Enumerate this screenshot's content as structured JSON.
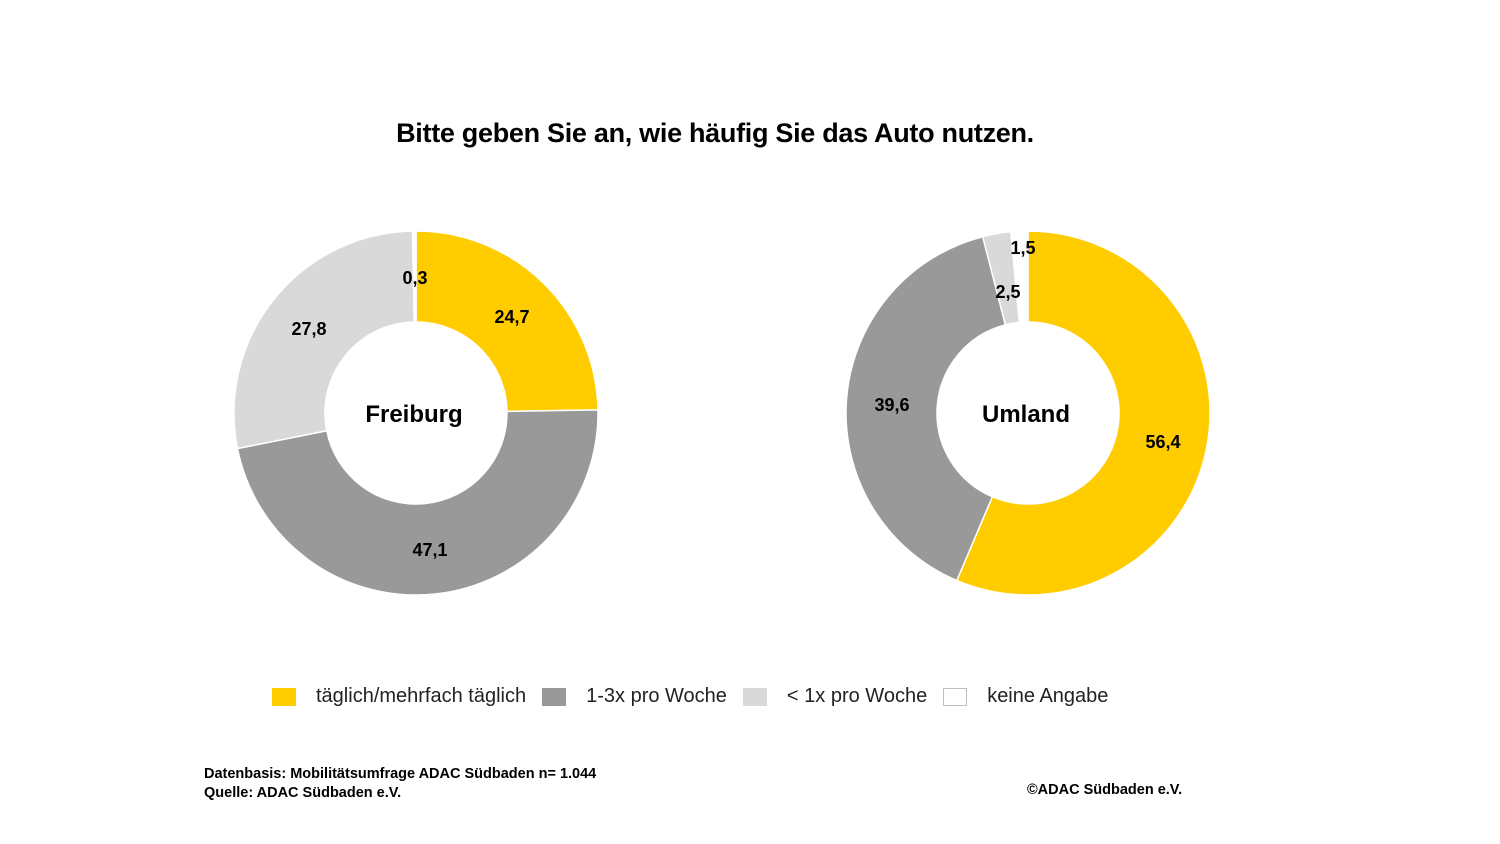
{
  "chart_data": {
    "type": "pie",
    "title": "Bitte geben Sie an, wie häufig Sie das Auto nutzen.",
    "categories": [
      "täglich/mehrfach täglich",
      "1-3x pro Woche",
      "< 1x pro Woche",
      "keine Angabe"
    ],
    "colors": [
      "#FFCC00",
      "#999999",
      "#D9D9D9",
      "#FFFFFF"
    ],
    "series": [
      {
        "name": "Freiburg",
        "values": [
          24.7,
          47.1,
          27.8,
          0.3
        ],
        "labels": [
          "24,7",
          "47,1",
          "27,8",
          "0,3"
        ]
      },
      {
        "name": "Umland",
        "values": [
          56.4,
          39.6,
          2.5,
          1.5
        ],
        "labels": [
          "56,4",
          "39,6",
          "2,5",
          "1,5"
        ]
      }
    ],
    "legend_position": "bottom"
  },
  "legend": {
    "items": [
      {
        "label": "täglich/mehrfach täglich",
        "color": "#FFCC00"
      },
      {
        "label": "1-3x pro Woche",
        "color": "#999999"
      },
      {
        "label": "< 1x pro Woche",
        "color": "#D9D9D9"
      },
      {
        "label": "keine Angabe",
        "color": "#FFFFFF"
      }
    ]
  },
  "footer": {
    "datenbasis": "Datenbasis: Mobilitätsumfrage ADAC Südbaden n= 1.044",
    "quelle": "Quelle: ADAC Südbaden e.V.",
    "copyright": "©ADAC Südbaden e.V."
  }
}
